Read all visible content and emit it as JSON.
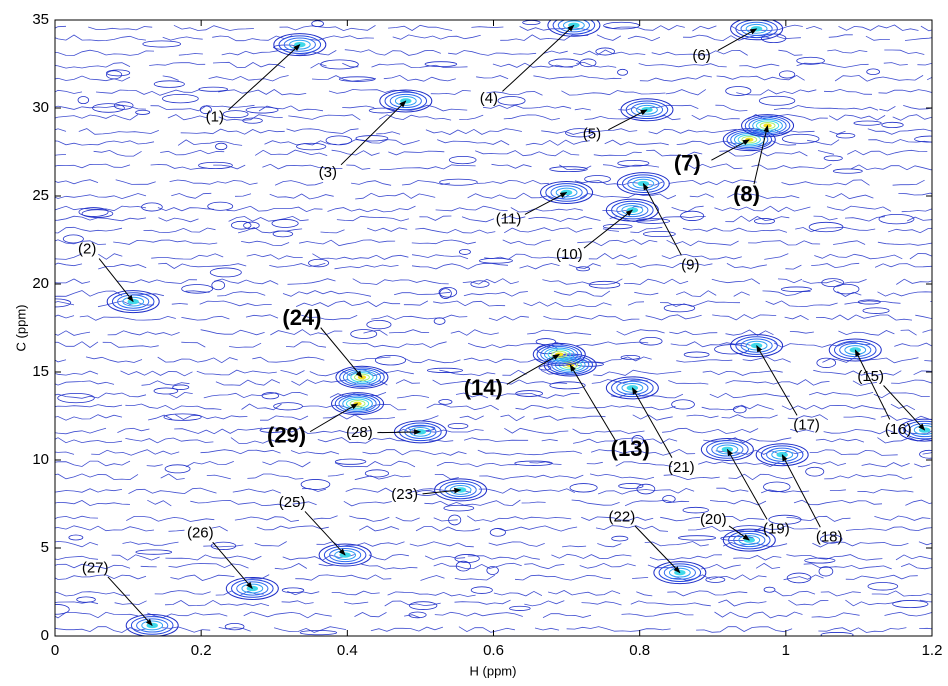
{
  "chart_data": {
    "type": "contour",
    "xlabel": "H (ppm)",
    "ylabel": "C (ppm)",
    "xlim": [
      0,
      1.2
    ],
    "ylim": [
      0,
      35
    ],
    "xticks": [
      0,
      0.2,
      0.4,
      0.6,
      0.8,
      1,
      1.2
    ],
    "yticks": [
      0,
      5,
      10,
      15,
      20,
      25,
      30,
      35
    ],
    "contour_color": "#1f2fc8",
    "annotations": [
      {
        "label": "(1)",
        "x": 0.335,
        "y": 33.6,
        "bold": false
      },
      {
        "label": "(2)",
        "x": 0.107,
        "y": 19,
        "bold": false
      },
      {
        "label": "(3)",
        "x": 0.48,
        "y": 30.4,
        "bold": false
      },
      {
        "label": "(4)",
        "x": 0.71,
        "y": 34.7,
        "bold": false
      },
      {
        "label": "(5)",
        "x": 0.81,
        "y": 29.9,
        "bold": false
      },
      {
        "label": "(6)",
        "x": 0.96,
        "y": 34.5,
        "bold": false
      },
      {
        "label": "(7)",
        "x": 0.95,
        "y": 28.2,
        "bold": true
      },
      {
        "label": "(8)",
        "x": 0.975,
        "y": 29,
        "bold": true
      },
      {
        "label": "(9)",
        "x": 0.805,
        "y": 25.7,
        "bold": false
      },
      {
        "label": "(10)",
        "x": 0.79,
        "y": 24.2,
        "bold": false
      },
      {
        "label": "(11)",
        "x": 0.7,
        "y": 25.2,
        "bold": false
      },
      {
        "label": "(13)",
        "x": 0.705,
        "y": 15.4,
        "bold": true
      },
      {
        "label": "(14)",
        "x": 0.69,
        "y": 16,
        "bold": true
      },
      {
        "label": "(15)",
        "x": 1.19,
        "y": 11.7,
        "bold": false
      },
      {
        "label": "(16)",
        "x": 1.095,
        "y": 16.25,
        "bold": false
      },
      {
        "label": "(17)",
        "x": 0.96,
        "y": 16.5,
        "bold": false
      },
      {
        "label": "(18)",
        "x": 0.995,
        "y": 10.3,
        "bold": false
      },
      {
        "label": "(19)",
        "x": 0.92,
        "y": 10.6,
        "bold": false
      },
      {
        "label": "(20)",
        "x": 0.95,
        "y": 5.45,
        "bold": false
      },
      {
        "label": "(21)",
        "x": 0.79,
        "y": 14.1,
        "bold": false
      },
      {
        "label": "(22)",
        "x": 0.855,
        "y": 3.6,
        "bold": false
      },
      {
        "label": "(23)",
        "x": 0.555,
        "y": 8.3,
        "bold": false
      },
      {
        "label": "(24)",
        "x": 0.42,
        "y": 14.7,
        "bold": true
      },
      {
        "label": "(25)",
        "x": 0.397,
        "y": 4.6,
        "bold": false
      },
      {
        "label": "(26)",
        "x": 0.27,
        "y": 2.7,
        "bold": false
      },
      {
        "label": "(27)",
        "x": 0.133,
        "y": 0.6,
        "bold": false
      },
      {
        "label": "(28)",
        "x": 0.5,
        "y": 11.6,
        "bold": false
      },
      {
        "label": "(29)",
        "x": 0.414,
        "y": 13.2,
        "bold": true
      }
    ]
  }
}
